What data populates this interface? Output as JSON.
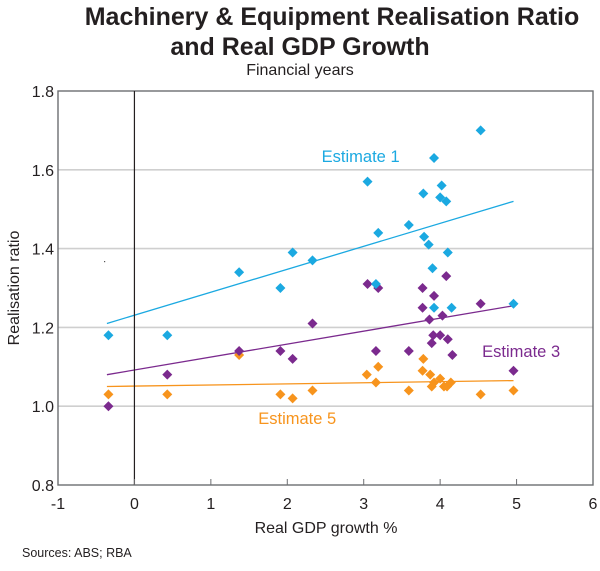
{
  "chart_data": {
    "type": "scatter",
    "title_line1": "Machinery & Equipment Realisation Ratio",
    "title_line2": "and Real GDP Growth",
    "subtitle": "Financial years",
    "xlabel": "Real GDP growth %",
    "ylabel": "Realisation ratio",
    "source": "Sources: ABS; RBA",
    "xlim": [
      -1,
      6
    ],
    "ylim": [
      0.8,
      1.8
    ],
    "xticks": [
      -1,
      0,
      1,
      2,
      3,
      4,
      5,
      6
    ],
    "xtick_labels": [
      "-1",
      "0",
      "1",
      "2",
      "3",
      "4",
      "5",
      "6"
    ],
    "yticks": [
      0.8,
      1.0,
      1.2,
      1.4,
      1.6,
      1.8
    ],
    "ytick_labels": [
      "0.8",
      "1.0",
      "1.2",
      "1.4",
      "1.6",
      "1.8"
    ],
    "gridlines_y": [
      1.0,
      1.2,
      1.4,
      1.6
    ],
    "grid": true,
    "zero_line_x": 0,
    "legend": "inline-labels",
    "series": [
      {
        "name": "Estimate 1",
        "color": "#1ba9e1",
        "marker": "diamond",
        "label_pos": [
          2.45,
          1.62
        ],
        "trend": [
          [
            -0.36,
            1.21
          ],
          [
            4.96,
            1.52
          ]
        ],
        "points": [
          [
            -0.34,
            1.18
          ],
          [
            0.43,
            1.18
          ],
          [
            1.37,
            1.34
          ],
          [
            1.91,
            1.3
          ],
          [
            2.07,
            1.39
          ],
          [
            2.33,
            1.37
          ],
          [
            3.05,
            1.57
          ],
          [
            3.16,
            1.31
          ],
          [
            3.19,
            1.44
          ],
          [
            3.59,
            1.46
          ],
          [
            3.78,
            1.54
          ],
          [
            3.79,
            1.43
          ],
          [
            3.85,
            1.41
          ],
          [
            3.9,
            1.35
          ],
          [
            3.92,
            1.63
          ],
          [
            3.92,
            1.25
          ],
          [
            4.0,
            1.53
          ],
          [
            4.02,
            1.56
          ],
          [
            4.08,
            1.52
          ],
          [
            4.1,
            1.39
          ],
          [
            4.15,
            1.25
          ],
          [
            4.53,
            1.7
          ],
          [
            4.96,
            1.26
          ]
        ]
      },
      {
        "name": "Estimate 3",
        "color": "#7b2a8e",
        "marker": "diamond",
        "label_pos": [
          4.55,
          1.125
        ],
        "trend": [
          [
            -0.36,
            1.08
          ],
          [
            4.96,
            1.255
          ]
        ],
        "points": [
          [
            -0.34,
            1.0
          ],
          [
            0.43,
            1.08
          ],
          [
            1.37,
            1.14
          ],
          [
            1.91,
            1.14
          ],
          [
            2.07,
            1.12
          ],
          [
            2.33,
            1.21
          ],
          [
            3.05,
            1.31
          ],
          [
            3.16,
            1.14
          ],
          [
            3.19,
            1.3
          ],
          [
            3.59,
            1.14
          ],
          [
            3.77,
            1.3
          ],
          [
            3.77,
            1.25
          ],
          [
            3.86,
            1.22
          ],
          [
            3.89,
            1.16
          ],
          [
            3.91,
            1.18
          ],
          [
            3.92,
            1.28
          ],
          [
            4.0,
            1.18
          ],
          [
            4.03,
            1.23
          ],
          [
            4.08,
            1.33
          ],
          [
            4.1,
            1.17
          ],
          [
            4.16,
            1.13
          ],
          [
            4.53,
            1.26
          ],
          [
            4.96,
            1.09
          ]
        ]
      },
      {
        "name": "Estimate 5",
        "color": "#f7941d",
        "marker": "diamond",
        "label_pos": [
          1.62,
          0.955
        ],
        "trend": [
          [
            -0.36,
            1.05
          ],
          [
            4.96,
            1.065
          ]
        ],
        "points": [
          [
            -0.34,
            1.03
          ],
          [
            0.43,
            1.03
          ],
          [
            1.37,
            1.13
          ],
          [
            1.91,
            1.03
          ],
          [
            2.07,
            1.02
          ],
          [
            2.33,
            1.04
          ],
          [
            3.04,
            1.08
          ],
          [
            3.16,
            1.06
          ],
          [
            3.19,
            1.1
          ],
          [
            3.59,
            1.04
          ],
          [
            3.77,
            1.09
          ],
          [
            3.78,
            1.12
          ],
          [
            3.87,
            1.08
          ],
          [
            3.89,
            1.05
          ],
          [
            3.92,
            1.06
          ],
          [
            4.0,
            1.07
          ],
          [
            4.05,
            1.05
          ],
          [
            4.09,
            1.05
          ],
          [
            4.14,
            1.06
          ],
          [
            4.53,
            1.03
          ],
          [
            4.96,
            1.04
          ]
        ]
      }
    ]
  }
}
